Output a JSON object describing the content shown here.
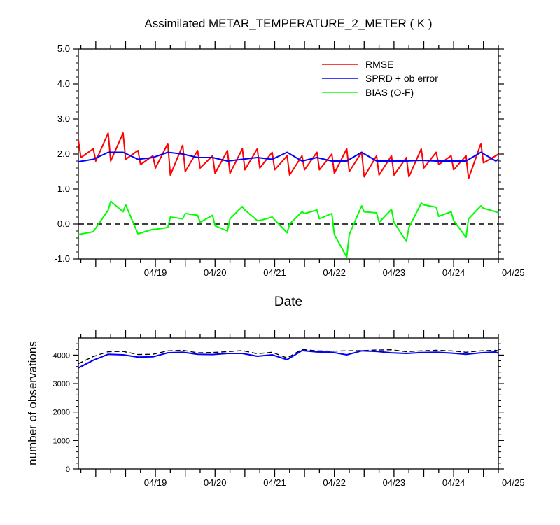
{
  "chart_data": [
    {
      "type": "line",
      "title": "Assimilated METAR_TEMPERATURE_2_METER ( K )",
      "xlabel": "Date",
      "ylabel": "",
      "xlim": [
        "04/18 05:00",
        "04/25 06:00"
      ],
      "ylim": [
        -1.0,
        5.0
      ],
      "yticks": [
        "-1.0",
        "0.0",
        "1.0",
        "2.0",
        "3.0",
        "4.0",
        "5.0"
      ],
      "xtick_labels": [
        "04/19",
        "04/20",
        "04/21",
        "04/22",
        "04/23",
        "04/24",
        "04/25"
      ],
      "legend_position": "top-right",
      "reference_line": 0,
      "series": [
        {
          "name": "RMSE",
          "color": "#ff0000",
          "x": [
            "04/18 05:00",
            "04/18 06:00",
            "04/18 11:00",
            "04/18 12:00",
            "04/18 17:00",
            "04/18 18:00",
            "04/18 23:00",
            "04/19 00:00",
            "04/19 05:00",
            "04/19 06:00",
            "04/19 11:00",
            "04/19 12:00",
            "04/19 17:00",
            "04/19 18:00",
            "04/19 23:00",
            "04/20 00:00",
            "04/20 05:00",
            "04/20 06:00",
            "04/20 11:00",
            "04/20 12:00",
            "04/20 17:00",
            "04/20 18:00",
            "04/20 23:00",
            "04/21 00:00",
            "04/21 05:00",
            "04/21 06:00",
            "04/21 11:00",
            "04/21 12:00",
            "04/21 17:00",
            "04/21 18:00",
            "04/21 23:00",
            "04/22 00:00",
            "04/22 05:00",
            "04/22 06:00",
            "04/22 11:00",
            "04/22 12:00",
            "04/22 17:00",
            "04/22 18:00",
            "04/22 23:00",
            "04/23 00:00",
            "04/23 05:00",
            "04/23 06:00",
            "04/23 11:00",
            "04/23 12:00",
            "04/23 17:00",
            "04/23 18:00",
            "04/23 23:00",
            "04/24 00:00",
            "04/24 05:00",
            "04/24 06:00",
            "04/24 11:00",
            "04/24 12:00",
            "04/24 17:00",
            "04/24 18:00",
            "04/24 23:00",
            "04/25 00:00",
            "04/25 05:00",
            "04/25 06:00"
          ],
          "values": [
            2.4,
            1.9,
            2.15,
            1.8,
            2.6,
            1.8,
            2.6,
            1.85,
            2.1,
            1.7,
            1.95,
            1.6,
            2.3,
            1.4,
            2.25,
            1.5,
            2.1,
            1.6,
            1.95,
            1.45,
            2.1,
            1.45,
            2.15,
            1.55,
            2.15,
            1.6,
            2.05,
            1.55,
            1.95,
            1.4,
            1.95,
            1.55,
            2.05,
            1.55,
            2.0,
            1.45,
            2.15,
            1.5,
            2.05,
            1.35,
            1.95,
            1.4,
            1.95,
            1.4,
            1.9,
            1.35,
            2.15,
            1.6,
            2.05,
            1.7,
            1.95,
            1.55,
            1.95,
            1.3,
            2.3,
            1.75,
            1.95,
            2.0
          ]
        },
        {
          "name": "SPRD + ob error",
          "color": "#0000ff",
          "x": [
            "04/18 05:00",
            "04/18 11:00",
            "04/18 17:00",
            "04/18 23:00",
            "04/19 05:00",
            "04/19 11:00",
            "04/19 17:00",
            "04/19 23:00",
            "04/20 05:00",
            "04/20 11:00",
            "04/20 17:00",
            "04/20 23:00",
            "04/21 05:00",
            "04/21 11:00",
            "04/21 17:00",
            "04/21 23:00",
            "04/22 05:00",
            "04/22 11:00",
            "04/22 17:00",
            "04/22 23:00",
            "04/23 05:00",
            "04/23 11:00",
            "04/23 17:00",
            "04/23 23:00",
            "04/24 05:00",
            "04/24 11:00",
            "04/24 17:00",
            "04/24 23:00",
            "04/25 05:00",
            "04/25 06:00"
          ],
          "values": [
            1.78,
            1.85,
            2.05,
            2.05,
            1.85,
            1.9,
            2.05,
            2.0,
            1.9,
            1.9,
            1.8,
            1.85,
            1.9,
            1.85,
            2.05,
            1.8,
            1.9,
            1.8,
            1.8,
            2.05,
            1.8,
            1.8,
            1.8,
            1.82,
            1.8,
            1.8,
            1.8,
            2.05,
            1.8,
            1.85
          ]
        },
        {
          "name": "BIAS (O-F)",
          "color": "#00ff00",
          "x": [
            "04/18 05:00",
            "04/18 11:00",
            "04/18 17:00",
            "04/18 18:00",
            "04/18 23:00",
            "04/19 00:00",
            "04/19 05:00",
            "04/19 11:00",
            "04/19 12:00",
            "04/19 17:00",
            "04/19 18:00",
            "04/19 23:00",
            "04/20 00:00",
            "04/20 05:00",
            "04/20 06:00",
            "04/20 11:00",
            "04/20 12:00",
            "04/20 17:00",
            "04/20 18:00",
            "04/20 23:00",
            "04/21 00:00",
            "04/21 05:00",
            "04/21 06:00",
            "04/21 11:00",
            "04/21 12:00",
            "04/21 17:00",
            "04/21 18:00",
            "04/21 23:00",
            "04/22 00:00",
            "04/22 05:00",
            "04/22 06:00",
            "04/22 11:00",
            "04/22 12:00",
            "04/22 17:00",
            "04/22 18:00",
            "04/22 23:00",
            "04/23 00:00",
            "04/23 05:00",
            "04/23 06:00",
            "04/23 11:00",
            "04/23 12:00",
            "04/23 17:00",
            "04/23 18:00",
            "04/23 23:00",
            "04/24 00:00",
            "04/24 05:00",
            "04/24 06:00",
            "04/24 11:00",
            "04/24 12:00",
            "04/24 17:00",
            "04/24 18:00",
            "04/24 23:00",
            "04/25 00:00",
            "04/25 05:00",
            "04/25 06:00"
          ],
          "values": [
            -0.3,
            -0.22,
            0.4,
            0.65,
            0.35,
            0.55,
            -0.28,
            -0.15,
            -0.15,
            -0.1,
            0.2,
            0.15,
            0.3,
            0.25,
            0.05,
            0.25,
            -0.05,
            -0.2,
            0.15,
            0.5,
            0.4,
            0.1,
            0.1,
            0.2,
            0.12,
            -0.25,
            0.0,
            0.35,
            0.3,
            0.4,
            0.15,
            0.3,
            -0.3,
            -0.95,
            -0.3,
            0.52,
            0.35,
            0.32,
            0.05,
            0.42,
            0.05,
            -0.5,
            -0.1,
            0.6,
            0.55,
            0.48,
            0.22,
            0.35,
            0.1,
            -0.38,
            0.15,
            0.52,
            0.45,
            0.35,
            0.32
          ]
        }
      ]
    },
    {
      "type": "line",
      "title": "",
      "xlabel": "",
      "ylabel": "number of observations",
      "xlim": [
        "04/18 05:00",
        "04/25 06:00"
      ],
      "ylim": [
        0,
        4600
      ],
      "yticks": [
        "0",
        "1000",
        "2000",
        "3000",
        "4000"
      ],
      "xtick_labels": [
        "04/19",
        "04/20",
        "04/21",
        "04/22",
        "04/23",
        "04/24",
        "04/25"
      ],
      "series": [
        {
          "style": "dashed",
          "color": "#000000",
          "x": [
            "04/18 05:00",
            "04/18 11:00",
            "04/18 17:00",
            "04/18 23:00",
            "04/19 05:00",
            "04/19 11:00",
            "04/19 17:00",
            "04/19 23:00",
            "04/20 05:00",
            "04/20 11:00",
            "04/20 17:00",
            "04/20 23:00",
            "04/21 05:00",
            "04/21 11:00",
            "04/21 17:00",
            "04/21 23:00",
            "04/22 05:00",
            "04/22 11:00",
            "04/22 17:00",
            "04/22 23:00",
            "04/23 05:00",
            "04/23 11:00",
            "04/23 17:00",
            "04/23 23:00",
            "04/24 05:00",
            "04/24 11:00",
            "04/24 17:00",
            "04/24 23:00",
            "04/25 05:00",
            "04/25 06:00"
          ],
          "values": [
            3700,
            3950,
            4120,
            4130,
            4020,
            4030,
            4150,
            4170,
            4080,
            4090,
            4120,
            4160,
            4050,
            4100,
            3900,
            4200,
            4150,
            4140,
            4150,
            4160,
            4180,
            4190,
            4120,
            4150,
            4170,
            4150,
            4100,
            4150,
            4170,
            4150
          ]
        },
        {
          "style": "solid",
          "color": "#0000ff",
          "x": [
            "04/18 05:00",
            "04/18 11:00",
            "04/18 17:00",
            "04/18 23:00",
            "04/19 05:00",
            "04/19 11:00",
            "04/19 17:00",
            "04/19 23:00",
            "04/20 05:00",
            "04/20 11:00",
            "04/20 17:00",
            "04/20 23:00",
            "04/21 05:00",
            "04/21 11:00",
            "04/21 17:00",
            "04/21 23:00",
            "04/22 05:00",
            "04/22 11:00",
            "04/22 17:00",
            "04/22 23:00",
            "04/23 05:00",
            "04/23 11:00",
            "04/23 17:00",
            "04/23 23:00",
            "04/24 05:00",
            "04/24 11:00",
            "04/24 17:00",
            "04/24 23:00",
            "04/25 05:00",
            "04/25 06:00"
          ],
          "values": [
            3550,
            3820,
            4030,
            4010,
            3930,
            3940,
            4080,
            4100,
            4030,
            4020,
            4060,
            4060,
            3960,
            4010,
            3840,
            4160,
            4110,
            4100,
            4010,
            4150,
            4130,
            4080,
            4060,
            4090,
            4100,
            4070,
            4030,
            4080,
            4110,
            4060
          ]
        }
      ]
    }
  ]
}
